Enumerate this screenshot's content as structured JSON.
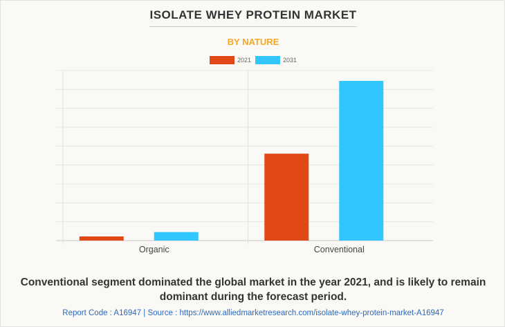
{
  "header": {
    "title": "ISOLATE WHEY PROTEIN MARKET",
    "subtitle": "BY NATURE"
  },
  "chart_data": {
    "type": "bar",
    "title": "ISOLATE WHEY PROTEIN MARKET",
    "subtitle": "BY NATURE",
    "categories": [
      "Organic",
      "Conventional"
    ],
    "series": [
      {
        "name": "2021",
        "color": "#e04816",
        "values": [
          0.22,
          4.6
        ]
      },
      {
        "name": "2031",
        "color": "#31c6fd",
        "values": [
          0.45,
          8.45
        ]
      }
    ],
    "xlabel": "",
    "ylabel": "",
    "ylim": [
      0,
      9
    ],
    "grid": true,
    "legend": "top-center",
    "y_tick_labels_visible": false
  },
  "footer": {
    "caption": "Conventional segment dominated the global market in the year 2021, and is likely to remain dominant during the forecast period.",
    "source": "Report Code : A16947  |  Source : https://www.alliedmarketresearch.com/isolate-whey-protein-market-A16947"
  }
}
